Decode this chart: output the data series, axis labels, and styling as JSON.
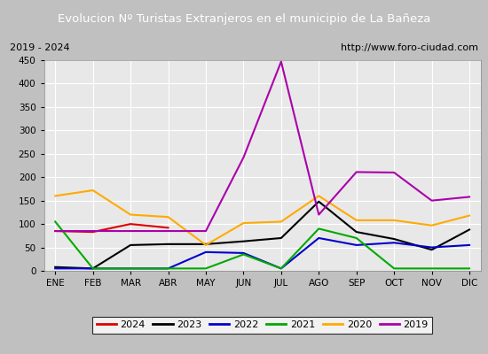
{
  "title": "Evolucion Nº Turistas Extranjeros en el municipio de La Bañeza",
  "subtitle_left": "2019 - 2024",
  "subtitle_right": "http://www.foro-ciudad.com",
  "months": [
    "ENE",
    "FEB",
    "MAR",
    "ABR",
    "MAY",
    "JUN",
    "JUL",
    "AGO",
    "SEP",
    "OCT",
    "NOV",
    "DIC"
  ],
  "series": {
    "2024": [
      85,
      83,
      100,
      92,
      null,
      null,
      null,
      null,
      null,
      null,
      null,
      null
    ],
    "2023": [
      8,
      5,
      55,
      57,
      57,
      63,
      70,
      148,
      83,
      68,
      45,
      88
    ],
    "2022": [
      5,
      5,
      5,
      5,
      40,
      38,
      5,
      70,
      55,
      60,
      50,
      55
    ],
    "2021": [
      105,
      5,
      5,
      5,
      5,
      35,
      5,
      90,
      70,
      5,
      5,
      5
    ],
    "2020": [
      160,
      172,
      120,
      115,
      55,
      102,
      105,
      160,
      108,
      108,
      97,
      118
    ],
    "2019": [
      85,
      85,
      85,
      85,
      85,
      242,
      447,
      120,
      211,
      210,
      150,
      158
    ]
  },
  "colors": {
    "2024": "#dd0000",
    "2023": "#000000",
    "2022": "#0000cc",
    "2021": "#00aa00",
    "2020": "#ffaa00",
    "2019": "#aa00aa"
  },
  "ylim": [
    0,
    450
  ],
  "yticks": [
    0,
    50,
    100,
    150,
    200,
    250,
    300,
    350,
    400,
    450
  ],
  "title_bg_color": "#4472c4",
  "title_text_color": "#ffffff",
  "plot_bg_color": "#e8e8e8",
  "grid_color": "#ffffff",
  "border_color": "#000000"
}
